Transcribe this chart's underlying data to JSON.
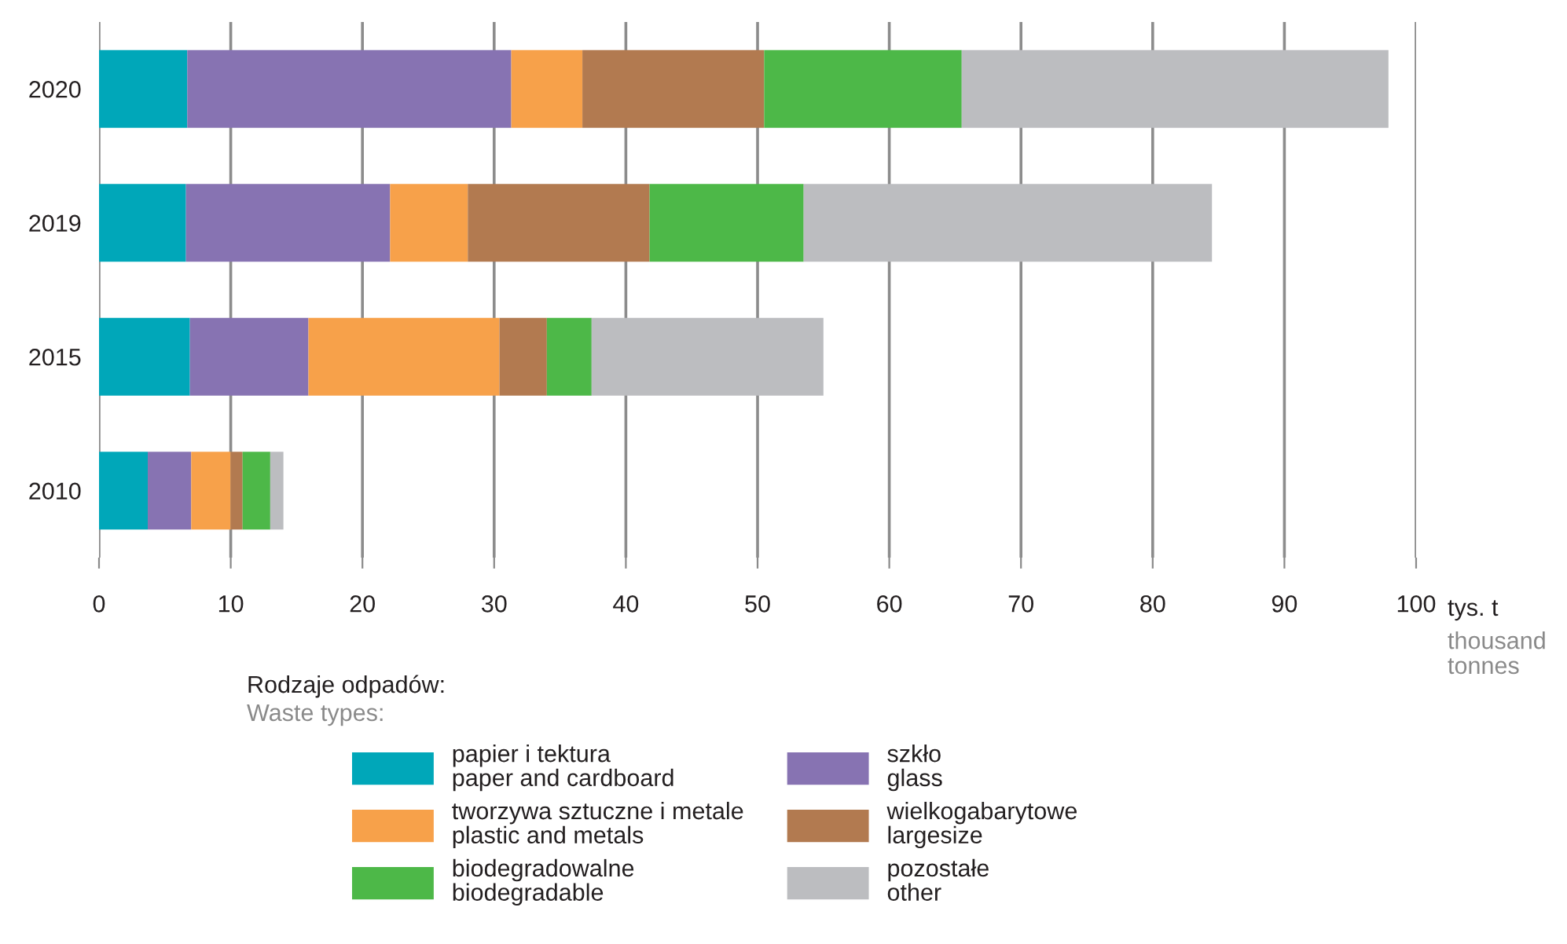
{
  "chart_data": {
    "type": "bar",
    "orientation": "horizontal",
    "stacked": true,
    "categories": [
      "2020",
      "2019",
      "2015",
      "2010"
    ],
    "series": [
      {
        "name": "papier i tektura\npaper and cardboard",
        "color": "#00a7b9",
        "values": [
          6.7,
          6.6,
          6.9,
          3.7
        ]
      },
      {
        "name": "szkło\nglass",
        "color": "#8773b2",
        "values": [
          24.6,
          15.5,
          9.0,
          3.3
        ]
      },
      {
        "name": "tworzywa sztuczne i metale\nplastic and metals",
        "color": "#f7a14a",
        "values": [
          5.4,
          5.9,
          14.5,
          3.0
        ]
      },
      {
        "name": "wielkogabarytowe\nlargesize",
        "color": "#b27a50",
        "values": [
          13.8,
          13.8,
          3.6,
          0.9
        ]
      },
      {
        "name": "biodegradowalne\nbiodegradable",
        "color": "#4db848",
        "values": [
          15.0,
          11.7,
          3.4,
          2.1
        ]
      },
      {
        "name": "pozostałe\nother",
        "color": "#bcbdc0",
        "values": [
          32.4,
          31.0,
          17.6,
          1.0
        ]
      }
    ],
    "xlim": [
      0,
      100
    ],
    "xticks": [
      0,
      10,
      20,
      30,
      40,
      50,
      60,
      70,
      80,
      90,
      100
    ],
    "xlabel": "tys. t\nthousand\ntonnes",
    "legend_title": "Rodzaje odpadów:\nWaste types:",
    "legend": "bottom",
    "grid": "x"
  }
}
